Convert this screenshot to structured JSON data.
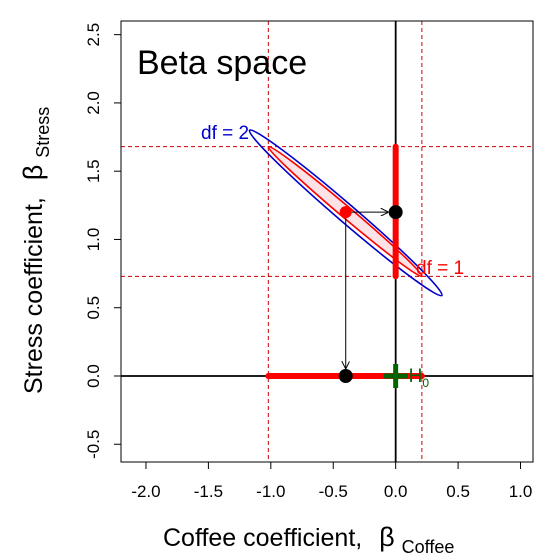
{
  "chart_data": {
    "type": "scatter",
    "title": "Beta space",
    "xlabel": "Coffee coefficient,",
    "xlabel_symbol": "β",
    "xlabel_sub": "Coffee",
    "ylabel": "Stress coefficient,",
    "ylabel_symbol": "β",
    "ylabel_sub": "Stress",
    "xlim": [
      -2.2,
      1.1
    ],
    "ylim": [
      -0.63,
      2.6
    ],
    "xticks": [
      -2.0,
      -1.5,
      -1.0,
      -0.5,
      0.0,
      0.5,
      1.0
    ],
    "xtick_labels": [
      "-2.0",
      "-1.5",
      "-1.0",
      "-0.5",
      "0.0",
      "0.5",
      "1.0"
    ],
    "yticks": [
      -0.5,
      0.0,
      0.5,
      1.0,
      1.5,
      2.0,
      2.5
    ],
    "ytick_labels": [
      "-0.5",
      "0.0",
      "0.5",
      "1.0",
      "1.5",
      "2.0",
      "2.5"
    ],
    "point_estimate": {
      "x": -0.4,
      "y": 1.2
    },
    "projection_points": [
      {
        "x": 0.0,
        "y": 1.2
      },
      {
        "x": -0.4,
        "y": 0.0
      }
    ],
    "ellipse_df1": {
      "label": "df = 1",
      "center": [
        -0.4,
        1.2
      ],
      "end_upper_left": [
        -1.02,
        1.68
      ],
      "end_lower_right": [
        0.21,
        0.73
      ],
      "half_width": 0.045
    },
    "ellipse_df2": {
      "label": "df = 2",
      "center": [
        -0.4,
        1.2
      ],
      "end_upper_left": [
        -1.17,
        1.8
      ],
      "end_lower_right": [
        0.37,
        0.59
      ],
      "half_width": 0.072
    },
    "ci_x": [
      -1.02,
      0.21
    ],
    "ci_y": [
      0.73,
      1.68
    ],
    "null_point": {
      "label": "H",
      "sub": "0",
      "x": 0.0,
      "y": 0.0
    },
    "colors": {
      "ci": "#ff0000",
      "dashed": "#cc0000",
      "ellipse_df1_fill": "#fbe3e6",
      "ellipse_df1_stroke": "#ff0000",
      "ellipse_df2_stroke": "#0000cc",
      "df2_label": "#0000cc",
      "df1_label": "#ff0000",
      "null": "#006400",
      "points": "#000000",
      "estimate": "#ff0000"
    }
  }
}
